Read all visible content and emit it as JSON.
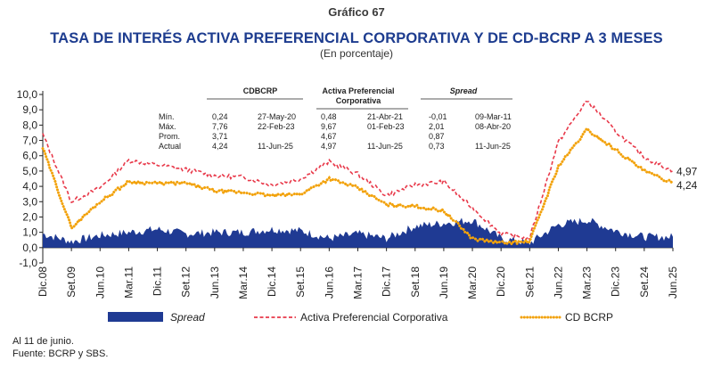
{
  "header": {
    "chart_number": "Gráfico 67",
    "title": "TASA DE INTERÉS ACTIVA PREFERENCIAL CORPORATIVA Y DE CD-BCRP A 3 MESES",
    "subtitle": "(En porcentaje)"
  },
  "footnotes": {
    "note": "Al 11 de junio.",
    "source": "Fuente: BCRP y SBS."
  },
  "colors": {
    "spread": "#1f3a93",
    "activa": "#e8394a",
    "cdbcrp": "#f2a20c",
    "axis": "#222222"
  },
  "stats_table": {
    "groups": [
      "CDBCRP",
      "Activa Preferencial Corporativa",
      "Spread"
    ],
    "rows": [
      {
        "label": "Mín.",
        "cd_val": "0,24",
        "cd_date": "27-May-20",
        "ac_val": "0,48",
        "ac_date": "21-Abr-21",
        "sp_val": "-0,01",
        "sp_date": "09-Mar-11"
      },
      {
        "label": "Máx.",
        "cd_val": "7,76",
        "cd_date": "22-Feb-23",
        "ac_val": "9,67",
        "ac_date": "01-Feb-23",
        "sp_val": "2,01",
        "sp_date": "08-Abr-20"
      },
      {
        "label": "Prom.",
        "cd_val": "3,71",
        "cd_date": "",
        "ac_val": "4,67",
        "ac_date": "",
        "sp_val": "0,87",
        "sp_date": ""
      },
      {
        "label": "Actual",
        "cd_val": "4,24",
        "cd_date": "11-Jun-25",
        "ac_val": "4,97",
        "ac_date": "11-Jun-25",
        "sp_val": "0,73",
        "sp_date": "11-Jun-25"
      }
    ]
  },
  "chart_data": {
    "type": "line",
    "x_labels": [
      "Dic.08",
      "Set.09",
      "Jun.10",
      "Mar.11",
      "Dic.11",
      "Set.12",
      "Jun.13",
      "Mar.14",
      "Dic.14",
      "Set.15",
      "Jun.16",
      "Mar.17",
      "Dic.17",
      "Set.18",
      "Jun.19",
      "Mar.20",
      "Dic.20",
      "Set.21",
      "Jun.22",
      "Mar.23",
      "Dic.23",
      "Set.24",
      "Jun.25"
    ],
    "y_ticks": [
      "-1,0",
      "0,0",
      "1,0",
      "2,0",
      "3,0",
      "4,0",
      "5,0",
      "6,0",
      "7,0",
      "8,0",
      "9,0",
      "10,0"
    ],
    "ylim": [
      -1,
      10
    ],
    "end_labels": {
      "activa": "4,97",
      "cdbcrp": "4,24"
    },
    "legend": [
      "Spread",
      "Activa Preferencial Corporativa",
      "CD BCRP"
    ],
    "series": [
      {
        "name": "Activa Preferencial Corporativa",
        "style": "dashed",
        "values": [
          7.4,
          3.0,
          3.9,
          5.7,
          5.4,
          5.1,
          4.7,
          4.6,
          4.1,
          4.5,
          5.6,
          4.8,
          3.4,
          4.1,
          4.3,
          2.6,
          0.9,
          0.6,
          6.9,
          9.6,
          7.6,
          5.9,
          5.0
        ]
      },
      {
        "name": "CD BCRP",
        "style": "dotted",
        "values": [
          6.5,
          1.3,
          3.0,
          4.3,
          4.2,
          4.2,
          3.7,
          3.6,
          3.4,
          3.5,
          4.5,
          3.9,
          2.8,
          2.7,
          2.4,
          0.6,
          0.3,
          0.4,
          5.3,
          7.7,
          6.4,
          5.0,
          4.2
        ]
      },
      {
        "name": "Spread",
        "style": "area",
        "values": [
          0.9,
          0.4,
          0.8,
          1.0,
          1.2,
          0.9,
          1.0,
          1.0,
          1.2,
          1.1,
          0.6,
          0.9,
          0.6,
          1.4,
          1.6,
          1.8,
          0.6,
          0.3,
          1.5,
          1.8,
          1.1,
          0.7,
          0.7
        ]
      }
    ]
  }
}
